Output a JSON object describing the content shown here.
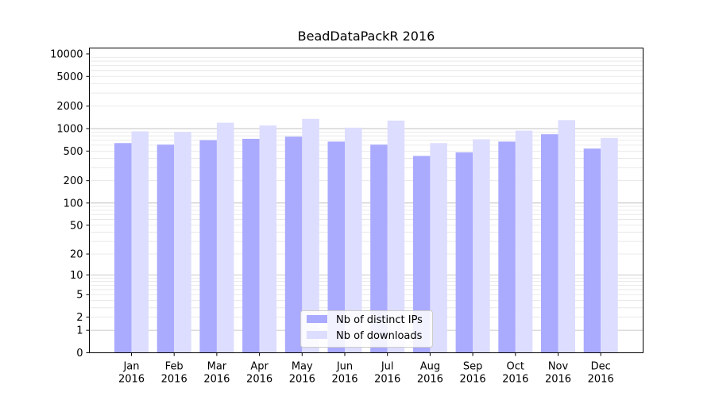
{
  "chart_data": {
    "type": "bar",
    "title": "BeadDataPackR 2016",
    "xlabel": "",
    "ylabel": "",
    "y_scale": "log1p",
    "ylim": [
      0,
      12000
    ],
    "y_ticks": [
      0,
      1,
      2,
      5,
      10,
      20,
      50,
      100,
      200,
      500,
      1000,
      2000,
      5000,
      10000
    ],
    "y_tick_labels": [
      "0",
      "1",
      "2",
      "5",
      "10",
      "20",
      "50",
      "100",
      "200",
      "500",
      "1000",
      "2000",
      "5000",
      "10000"
    ],
    "major_gridlines": [
      1,
      10,
      100,
      1000
    ],
    "minor_gridlines": true,
    "legend_position": "bottom-center",
    "categories": [
      "Jan\n2016",
      "Feb\n2016",
      "Mar\n2016",
      "Apr\n2016",
      "May\n2016",
      "Jun\n2016",
      "Jul\n2016",
      "Aug\n2016",
      "Sep\n2016",
      "Oct\n2016",
      "Nov\n2016",
      "Dec\n2016"
    ],
    "series": [
      {
        "name": "Nb of distinct IPs",
        "color": "#aaaaff",
        "values": [
          640,
          610,
          700,
          730,
          780,
          670,
          610,
          430,
          480,
          670,
          840,
          540
        ]
      },
      {
        "name": "Nb of downloads",
        "color": "#ddddff",
        "values": [
          920,
          900,
          1200,
          1100,
          1350,
          1030,
          1280,
          640,
          720,
          940,
          1300,
          750
        ]
      }
    ]
  }
}
